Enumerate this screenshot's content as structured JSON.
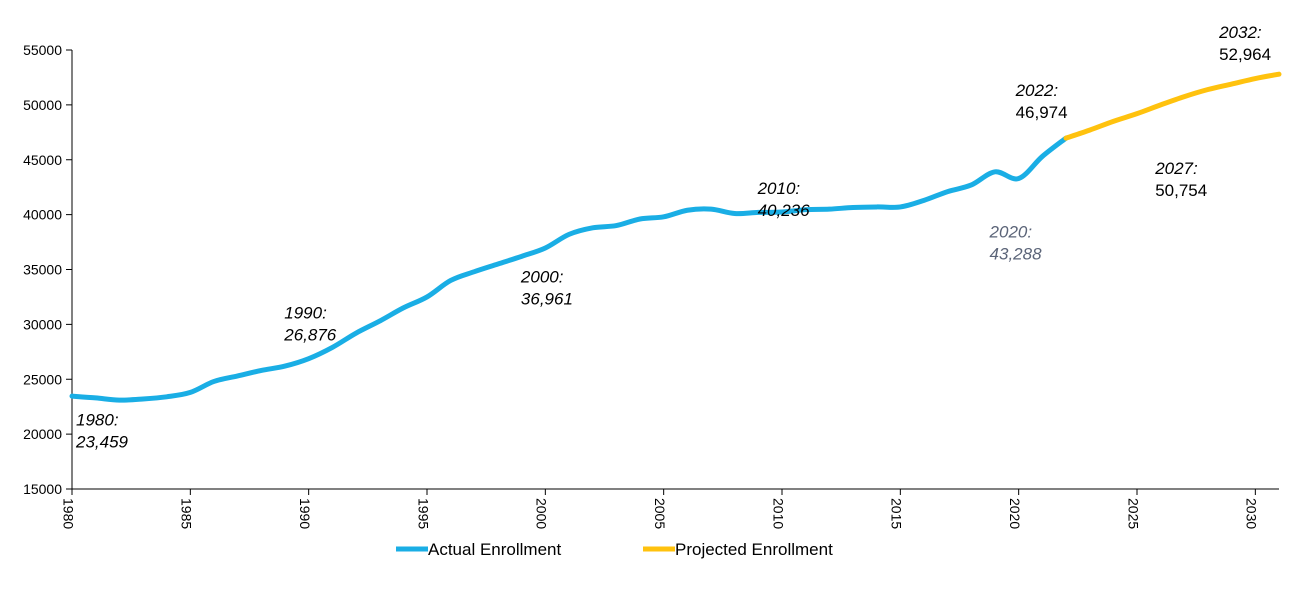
{
  "chart_data": {
    "type": "line",
    "title": "",
    "xlabel": "",
    "ylabel": "",
    "xlim": [
      1980,
      2031
    ],
    "ylim": [
      15000,
      55000
    ],
    "y_ticks": [
      15000,
      20000,
      25000,
      30000,
      35000,
      40000,
      45000,
      50000,
      55000
    ],
    "x_ticks": [
      1980,
      1985,
      1990,
      1995,
      2000,
      2005,
      2010,
      2015,
      2020,
      2025,
      2030
    ],
    "grid": false,
    "legend_position": "bottom",
    "series": [
      {
        "name": "Actual Enrollment",
        "color": "#1aaee5",
        "x": [
          1980,
          1981,
          1982,
          1983,
          1984,
          1985,
          1986,
          1987,
          1988,
          1989,
          1990,
          1991,
          1992,
          1993,
          1994,
          1995,
          1996,
          1997,
          1998,
          1999,
          2000,
          2001,
          2002,
          2003,
          2004,
          2005,
          2006,
          2007,
          2008,
          2009,
          2010,
          2011,
          2012,
          2013,
          2014,
          2015,
          2016,
          2017,
          2018,
          2019,
          2020,
          2021,
          2022
        ],
        "values": [
          23459,
          23300,
          23100,
          23200,
          23400,
          23800,
          24800,
          25300,
          25800,
          26200,
          26876,
          27900,
          29200,
          30300,
          31500,
          32500,
          34000,
          34800,
          35500,
          36200,
          36961,
          38200,
          38800,
          39000,
          39600,
          39800,
          40400,
          40500,
          40100,
          40200,
          40236,
          40450,
          40500,
          40650,
          40700,
          40700,
          41300,
          42100,
          42700,
          43900,
          43288,
          45300,
          46974
        ]
      },
      {
        "name": "Projected Enrollment",
        "color": "#ffc20e",
        "x": [
          2022,
          2023,
          2024,
          2025,
          2026,
          2027,
          2028,
          2029,
          2030,
          2031
        ],
        "values": [
          46974,
          47700,
          48500,
          49200,
          50000,
          50754,
          51400,
          51900,
          52400,
          52800
        ]
      }
    ],
    "annotations": [
      {
        "year_label": "1980:",
        "value_label": "23,459",
        "italic_value": true,
        "gray": false,
        "x": 1980,
        "y": 20800
      },
      {
        "year_label": "1990:",
        "value_label": "26,876",
        "italic_value": true,
        "gray": false,
        "x": 1988.8,
        "y": 30550
      },
      {
        "year_label": "2000:",
        "value_label": "36,961",
        "italic_value": true,
        "gray": false,
        "x": 1998.8,
        "y": 33800
      },
      {
        "year_label": "2010:",
        "value_label": "40,236",
        "italic_value": true,
        "gray": false,
        "x": 2008.8,
        "y": 41900
      },
      {
        "year_label": "2020:",
        "value_label": "43,288",
        "italic_value": true,
        "gray": true,
        "x": 2018.6,
        "y": 37900
      },
      {
        "year_label": "2022:",
        "value_label": "46,974",
        "italic_value": false,
        "gray": false,
        "x": 2019.7,
        "y": 50800
      },
      {
        "year_label": "2027:",
        "value_label": "50,754",
        "italic_value": false,
        "gray": false,
        "x": 2025.6,
        "y": 43700
      },
      {
        "year_label": "2032:",
        "value_label": "52,964",
        "italic_value": false,
        "gray": false,
        "x": 2028.3,
        "y": 56100
      }
    ]
  }
}
